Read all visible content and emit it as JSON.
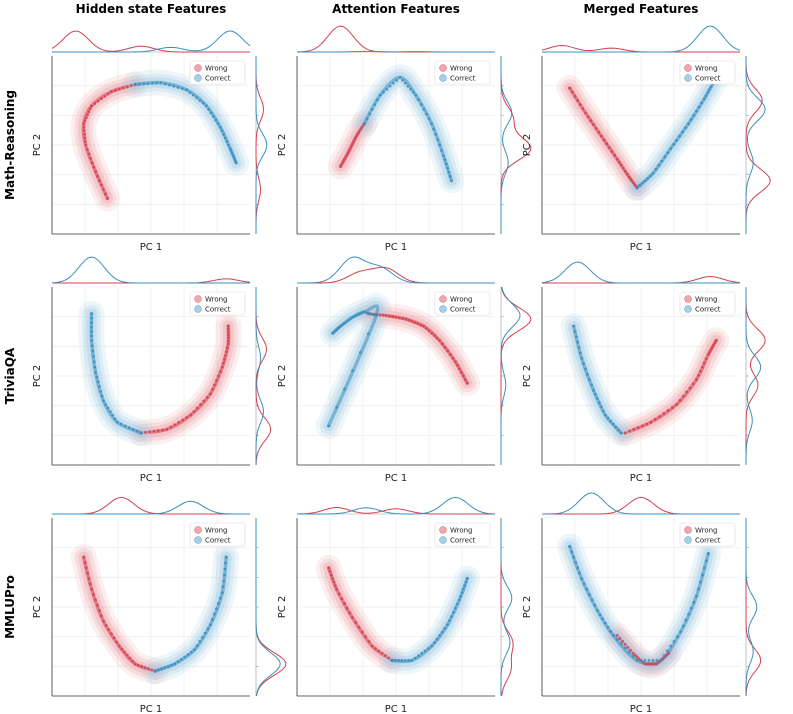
{
  "column_titles": [
    "Hidden state Features",
    "Attention Features",
    "Merged Features"
  ],
  "row_titles": [
    "Math-Reasoning",
    "TriviaQA",
    "MMLUPro"
  ],
  "xlabel": "PC 1",
  "ylabel": "PC 2",
  "legend": [
    {
      "name": "Wrong",
      "color": "#d6404e"
    },
    {
      "name": "Correct",
      "color": "#3a8fc0"
    }
  ],
  "chart_data": [
    {
      "type": "scatter",
      "row": "Math-Reasoning",
      "column": "Hidden state Features",
      "xlabel": "PC 1",
      "ylabel": "PC 2",
      "grid": true,
      "legend_position": "top-right",
      "series": [
        {
          "name": "Wrong",
          "x": [
            0.28,
            0.22,
            0.17,
            0.16,
            0.2,
            0.3,
            0.42
          ],
          "y": [
            0.2,
            0.35,
            0.5,
            0.62,
            0.72,
            0.8,
            0.84
          ]
        },
        {
          "name": "Correct",
          "x": [
            0.42,
            0.55,
            0.68,
            0.78,
            0.85,
            0.9,
            0.93
          ],
          "y": [
            0.84,
            0.85,
            0.81,
            0.72,
            0.6,
            0.48,
            0.4
          ]
        }
      ]
    },
    {
      "type": "scatter",
      "row": "Math-Reasoning",
      "column": "Attention Features",
      "xlabel": "PC 1",
      "ylabel": "PC 2",
      "grid": true,
      "legend_position": "top-right",
      "series": [
        {
          "name": "Wrong",
          "x": [
            0.22,
            0.26,
            0.3,
            0.34
          ],
          "y": [
            0.38,
            0.46,
            0.55,
            0.62
          ]
        },
        {
          "name": "Correct",
          "x": [
            0.34,
            0.42,
            0.52,
            0.6,
            0.68,
            0.74,
            0.78
          ],
          "y": [
            0.62,
            0.78,
            0.88,
            0.78,
            0.62,
            0.44,
            0.3
          ]
        }
      ]
    },
    {
      "type": "scatter",
      "row": "Math-Reasoning",
      "column": "Merged Features",
      "xlabel": "PC 1",
      "ylabel": "PC 2",
      "grid": true,
      "legend_position": "top-right",
      "series": [
        {
          "name": "Wrong",
          "x": [
            0.14,
            0.22,
            0.3,
            0.38,
            0.44,
            0.48
          ],
          "y": [
            0.82,
            0.68,
            0.55,
            0.42,
            0.32,
            0.26
          ]
        },
        {
          "name": "Correct",
          "x": [
            0.48,
            0.56,
            0.65,
            0.74,
            0.82,
            0.87
          ],
          "y": [
            0.26,
            0.34,
            0.48,
            0.62,
            0.76,
            0.86
          ]
        }
      ]
    },
    {
      "type": "scatter",
      "row": "TriviaQA",
      "column": "Hidden state Features",
      "xlabel": "PC 1",
      "ylabel": "PC 2",
      "grid": true,
      "legend_position": "top-right",
      "series": [
        {
          "name": "Wrong",
          "x": [
            0.45,
            0.58,
            0.7,
            0.8,
            0.86,
            0.89,
            0.89
          ],
          "y": [
            0.18,
            0.2,
            0.28,
            0.4,
            0.55,
            0.68,
            0.78
          ]
        },
        {
          "name": "Correct",
          "x": [
            0.2,
            0.2,
            0.22,
            0.26,
            0.33,
            0.45
          ],
          "y": [
            0.85,
            0.7,
            0.52,
            0.36,
            0.24,
            0.18
          ]
        }
      ]
    },
    {
      "type": "scatter",
      "row": "TriviaQA",
      "column": "Attention Features",
      "xlabel": "PC 1",
      "ylabel": "PC 2",
      "grid": true,
      "legend_position": "top-right",
      "series": [
        {
          "name": "Wrong",
          "x": [
            0.36,
            0.45,
            0.55,
            0.64,
            0.72,
            0.8,
            0.86
          ],
          "y": [
            0.85,
            0.84,
            0.82,
            0.78,
            0.7,
            0.58,
            0.46
          ]
        },
        {
          "name": "Correct",
          "x": [
            0.18,
            0.22,
            0.28,
            0.34,
            0.4,
            0.16
          ],
          "y": [
            0.74,
            0.78,
            0.83,
            0.86,
            0.84,
            0.22
          ]
        }
      ]
    },
    {
      "type": "scatter",
      "row": "TriviaQA",
      "column": "Merged Features",
      "xlabel": "PC 1",
      "ylabel": "PC 2",
      "grid": true,
      "legend_position": "top-right",
      "series": [
        {
          "name": "Wrong",
          "x": [
            0.42,
            0.55,
            0.68,
            0.78,
            0.84,
            0.88
          ],
          "y": [
            0.18,
            0.24,
            0.34,
            0.48,
            0.62,
            0.7
          ]
        },
        {
          "name": "Correct",
          "x": [
            0.16,
            0.2,
            0.26,
            0.32,
            0.4
          ],
          "y": [
            0.78,
            0.6,
            0.42,
            0.28,
            0.18
          ]
        }
      ]
    },
    {
      "type": "scatter",
      "row": "MMLUPro",
      "column": "Hidden state Features",
      "xlabel": "PC 1",
      "ylabel": "PC 2",
      "grid": true,
      "legend_position": "top-right",
      "series": [
        {
          "name": "Wrong",
          "x": [
            0.16,
            0.2,
            0.26,
            0.34,
            0.42,
            0.52
          ],
          "y": [
            0.78,
            0.6,
            0.42,
            0.28,
            0.18,
            0.14
          ]
        },
        {
          "name": "Correct",
          "x": [
            0.52,
            0.62,
            0.72,
            0.8,
            0.86,
            0.88
          ],
          "y": [
            0.14,
            0.18,
            0.26,
            0.4,
            0.58,
            0.78
          ]
        }
      ]
    },
    {
      "type": "scatter",
      "row": "MMLUPro",
      "column": "Attention Features",
      "xlabel": "PC 1",
      "ylabel": "PC 2",
      "grid": true,
      "legend_position": "top-right",
      "series": [
        {
          "name": "Wrong",
          "x": [
            0.16,
            0.2,
            0.28,
            0.38,
            0.48
          ],
          "y": [
            0.72,
            0.6,
            0.44,
            0.28,
            0.2
          ]
        },
        {
          "name": "Correct",
          "x": [
            0.48,
            0.58,
            0.68,
            0.76,
            0.82,
            0.86
          ],
          "y": [
            0.2,
            0.2,
            0.28,
            0.4,
            0.54,
            0.66
          ]
        }
      ]
    },
    {
      "type": "scatter",
      "row": "MMLUPro",
      "column": "Merged Features",
      "xlabel": "PC 1",
      "ylabel": "PC 2",
      "grid": true,
      "legend_position": "top-right",
      "series": [
        {
          "name": "Wrong",
          "x": [
            0.38,
            0.46,
            0.52,
            0.58,
            0.64
          ],
          "y": [
            0.34,
            0.24,
            0.18,
            0.18,
            0.24
          ]
        },
        {
          "name": "Correct",
          "x": [
            0.14,
            0.2,
            0.28,
            0.36,
            0.48,
            0.6,
            0.7,
            0.78,
            0.84
          ],
          "y": [
            0.84,
            0.66,
            0.48,
            0.34,
            0.2,
            0.2,
            0.36,
            0.56,
            0.8
          ]
        }
      ]
    }
  ],
  "marginals": [
    {
      "row": 0,
      "col": 0,
      "top": {
        "Wrong": [
          [
            0.12,
            0.9
          ],
          [
            0.45,
            0.25
          ]
        ],
        "Correct": [
          [
            0.9,
            0.9
          ],
          [
            0.6,
            0.2
          ]
        ]
      },
      "side": {
        "Wrong": [
          [
            0.3,
            0.5
          ],
          [
            0.75,
            0.3
          ]
        ],
        "Correct": [
          [
            0.5,
            0.6
          ]
        ]
      }
    },
    {
      "row": 0,
      "col": 1,
      "top": {
        "Wrong": [
          [
            0.22,
            1.0
          ]
        ],
        "Correct": [
          [
            0.35,
            0.15
          ],
          [
            0.6,
            0.1
          ]
        ]
      },
      "side": {
        "Wrong": [
          [
            0.52,
            1.0
          ],
          [
            0.35,
            0.4
          ]
        ],
        "Correct": [
          [
            0.32,
            0.6
          ],
          [
            0.6,
            0.4
          ]
        ]
      }
    },
    {
      "row": 0,
      "col": 2,
      "top": {
        "Wrong": [
          [
            0.1,
            0.5
          ],
          [
            0.35,
            0.3
          ]
        ],
        "Correct": [
          [
            0.85,
            1.0
          ]
        ]
      },
      "side": {
        "Wrong": [
          [
            0.7,
            0.9
          ],
          [
            0.25,
            0.6
          ]
        ],
        "Correct": [
          [
            0.3,
            0.8
          ],
          [
            0.6,
            0.3
          ]
        ]
      }
    },
    {
      "row": 1,
      "col": 0,
      "top": {
        "Wrong": [
          [
            0.88,
            0.4
          ]
        ],
        "Correct": [
          [
            0.2,
            1.0
          ]
        ]
      },
      "side": {
        "Wrong": [
          [
            0.35,
            0.5
          ],
          [
            0.8,
            0.7
          ]
        ],
        "Correct": [
          [
            0.7,
            0.5
          ],
          [
            0.4,
            0.3
          ]
        ]
      }
    },
    {
      "row": 1,
      "col": 1,
      "top": {
        "Wrong": [
          [
            0.45,
            0.7
          ],
          [
            0.32,
            0.5
          ]
        ],
        "Correct": [
          [
            0.28,
            1.0
          ],
          [
            0.42,
            0.6
          ]
        ]
      },
      "side": {
        "Wrong": [
          [
            0.18,
            1.0
          ]
        ],
        "Correct": [
          [
            0.16,
            0.8
          ],
          [
            0.55,
            0.2
          ]
        ]
      }
    },
    {
      "row": 1,
      "col": 2,
      "top": {
        "Wrong": [
          [
            0.85,
            0.5
          ]
        ],
        "Correct": [
          [
            0.18,
            0.9
          ]
        ]
      },
      "side": {
        "Wrong": [
          [
            0.3,
            0.8
          ],
          [
            0.55,
            0.5
          ]
        ],
        "Correct": [
          [
            0.45,
            0.7
          ],
          [
            0.75,
            0.3
          ]
        ]
      }
    },
    {
      "row": 2,
      "col": 0,
      "top": {
        "Wrong": [
          [
            0.35,
            0.8
          ]
        ],
        "Correct": [
          [
            0.7,
            0.7
          ]
        ]
      },
      "side": {
        "Wrong": [
          [
            0.82,
            1.0
          ]
        ],
        "Correct": [
          [
            0.82,
            0.9
          ]
        ]
      }
    },
    {
      "row": 2,
      "col": 1,
      "top": {
        "Wrong": [
          [
            0.2,
            0.5
          ],
          [
            0.5,
            0.4
          ]
        ],
        "Correct": [
          [
            0.8,
            0.8
          ],
          [
            0.35,
            0.3
          ]
        ]
      },
      "side": {
        "Wrong": [
          [
            0.7,
            0.6
          ],
          [
            0.85,
            0.5
          ]
        ],
        "Correct": [
          [
            0.45,
            0.6
          ],
          [
            0.7,
            0.5
          ]
        ]
      }
    },
    {
      "row": 2,
      "col": 2,
      "top": {
        "Wrong": [
          [
            0.5,
            0.8
          ]
        ],
        "Correct": [
          [
            0.25,
            0.9
          ]
        ]
      },
      "side": {
        "Wrong": [
          [
            0.8,
            0.7
          ]
        ],
        "Correct": [
          [
            0.5,
            0.6
          ],
          [
            0.75,
            0.4
          ]
        ]
      }
    }
  ]
}
